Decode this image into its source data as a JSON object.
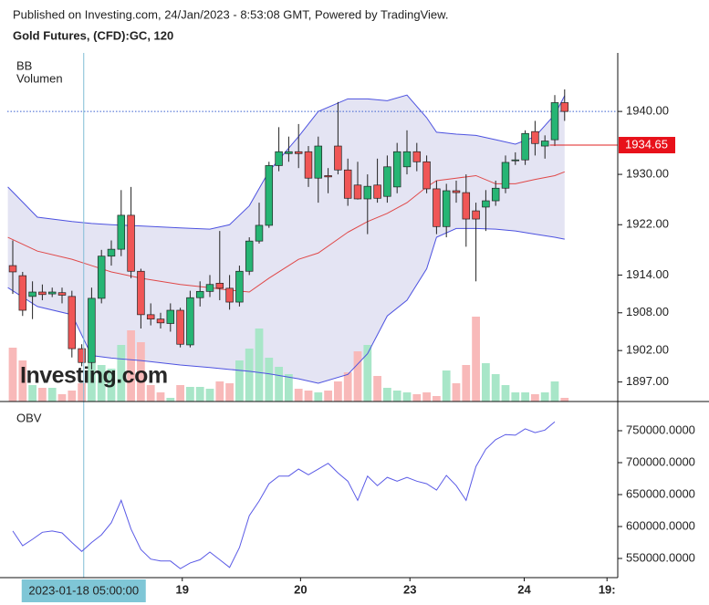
{
  "header": {
    "published": "Published on Investing.com, 24/Jan/2023 - 8:53:08 GMT, Powered by TradingView."
  },
  "chart_data": [
    {
      "type": "candlestick",
      "title": "Gold Futures, (CFD):GC, 120",
      "indicators": [
        "BB",
        "Volumen"
      ],
      "watermark": "Investing.com",
      "up_color": "#26b574",
      "down_color": "#f05656",
      "volume_up_color": "#a8e6c8",
      "volume_down_color": "#f8b9b9",
      "band_color": "#4d52e0",
      "band_fill": "#e4e4f3",
      "middle_color": "#e04848",
      "xlim": [
        -0.556,
        61.39
      ],
      "ylim": [
        1893.9,
        1949.3
      ],
      "volume_ylim": [
        0,
        382
      ],
      "yticks": [
        {
          "value": 1940,
          "label": "1940.00"
        },
        {
          "value": 1930,
          "label": "1930.00"
        },
        {
          "value": 1922,
          "label": "1922.00"
        },
        {
          "value": 1914,
          "label": "1914.00"
        },
        {
          "value": 1908,
          "label": "1908.00"
        },
        {
          "value": 1902,
          "label": "1902.00"
        },
        {
          "value": 1897,
          "label": "1897.00"
        }
      ],
      "xticks": [
        {
          "value": 17.2,
          "label": "19"
        },
        {
          "value": 29.2,
          "label": "20"
        },
        {
          "value": 40.3,
          "label": "23"
        },
        {
          "value": 51.9,
          "label": "24"
        },
        {
          "value": 60.3,
          "label": "19:"
        }
      ],
      "crosshair": {
        "x": 7.2,
        "label": "2023-01-18 05:00:00",
        "y": 1940
      },
      "last_price": 1934.65,
      "open": [
        1915.5,
        1913.9,
        1910.6,
        1911.3,
        1911,
        1911.2,
        1910.6,
        1902.3,
        1900.1,
        1910.3,
        1917,
        1918.1,
        1923.5,
        1914.6,
        1907.7,
        1907,
        1906.3,
        1908.4,
        1902.9,
        1910.4,
        1911.4,
        1912.7,
        1911.9,
        1909.7,
        1914.6,
        1919.4,
        1921.9,
        1931.4,
        1933.3,
        1933.6,
        1933.6,
        1929.4,
        1929.8,
        1934.5,
        1930.7,
        1928.3,
        1926.1,
        1928.3,
        1926.5,
        1928,
        1931.2,
        1933.6,
        1932,
        1927.7,
        1921.7,
        1927.4,
        1927.1,
        1924.2,
        1924.8,
        1925.8,
        1927.8,
        1932.2,
        1932.3,
        1936.8,
        1934.5,
        1935.5,
        1941.4
      ],
      "high": [
        1919.5,
        1914.5,
        1913,
        1912.5,
        1912,
        1912,
        1911.5,
        1903,
        1912,
        1918,
        1919.5,
        1927.5,
        1928,
        1915,
        1909.5,
        1908,
        1909.5,
        1908.8,
        1911.5,
        1913,
        1914,
        1921,
        1914,
        1915.5,
        1920,
        1925.5,
        1932,
        1937.5,
        1936,
        1938,
        1934.5,
        1936,
        1931,
        1941.5,
        1932.5,
        1932,
        1930,
        1932.5,
        1933,
        1935,
        1937,
        1935,
        1933,
        1929,
        1928.5,
        1929,
        1930,
        1925.5,
        1927.5,
        1929,
        1933,
        1933.5,
        1937,
        1938.5,
        1936.2,
        1942.6,
        1943.5
      ],
      "low": [
        1911,
        1907.5,
        1907,
        1910,
        1910.5,
        1909.5,
        1900.9,
        1899.5,
        1899,
        1909.5,
        1915.5,
        1917,
        1913.5,
        1905.5,
        1906,
        1905.5,
        1905,
        1902.5,
        1902.5,
        1909,
        1910.5,
        1910,
        1908.5,
        1909,
        1914,
        1919,
        1921.5,
        1930.5,
        1932,
        1931,
        1928,
        1925.5,
        1927,
        1930,
        1925,
        1926,
        1920.5,
        1925.5,
        1925.5,
        1927,
        1930,
        1930.5,
        1927,
        1920.5,
        1920,
        1925.5,
        1918.5,
        1913,
        1921,
        1925,
        1927,
        1931.5,
        1931.5,
        1933,
        1932.5,
        1934.5,
        1938.5
      ],
      "close": [
        1914.5,
        1908.4,
        1911.3,
        1910.9,
        1911.3,
        1910.8,
        1902.3,
        1900.1,
        1910.3,
        1917,
        1918.1,
        1923.5,
        1914.6,
        1907.7,
        1907,
        1906.4,
        1908.4,
        1903,
        1910.4,
        1911.4,
        1912.5,
        1911.9,
        1909.7,
        1914.6,
        1919.4,
        1921.9,
        1931.4,
        1933.6,
        1933.6,
        1933.3,
        1929.4,
        1934.5,
        1929.6,
        1930.7,
        1926.2,
        1926.1,
        1928.1,
        1926.2,
        1931.2,
        1933.6,
        1933.6,
        1932,
        1927.7,
        1921.7,
        1927.4,
        1927.1,
        1922.9,
        1922.9,
        1925.8,
        1927.8,
        1931.9,
        1932.3,
        1936.5,
        1934.9,
        1935.3,
        1941.4,
        1940
      ],
      "volume": [
        59,
        45,
        18,
        15,
        15,
        8,
        12,
        20,
        45,
        40,
        36,
        62,
        78,
        65,
        18,
        10,
        4,
        18,
        16,
        16,
        14,
        22,
        20,
        45,
        58,
        80,
        48,
        38,
        30,
        14,
        12,
        10,
        12,
        22,
        32,
        55,
        62,
        28,
        15,
        12,
        10,
        8,
        10,
        6,
        34,
        20,
        40,
        93,
        42,
        30,
        18,
        10,
        10,
        8,
        10,
        22,
        4
      ],
      "bb": {
        "x": [
          -0.5,
          2.5,
          6,
          8,
          10,
          13,
          17,
          20,
          22,
          24,
          26,
          29,
          31,
          34,
          36,
          38,
          40,
          42,
          43,
          45,
          47,
          49,
          51,
          53,
          55,
          56
        ],
        "upper": [
          1928,
          1923.2,
          1922.5,
          1922.2,
          1922,
          1921.8,
          1921.5,
          1921.3,
          1922,
          1925,
          1930.5,
          1936,
          1940,
          1942,
          1942,
          1941.7,
          1942.6,
          1939,
          1936.7,
          1936.4,
          1936.2,
          1935.5,
          1934.8,
          1936,
          1939.5,
          1942.5
        ],
        "middle": [
          1920,
          1917.8,
          1916.5,
          1915.5,
          1914.5,
          1913.5,
          1912.5,
          1912,
          1911.6,
          1911.3,
          1913.5,
          1916.5,
          1917.5,
          1920.8,
          1922.5,
          1923.8,
          1925.5,
          1928,
          1929,
          1929.4,
          1929.8,
          1928.5,
          1928.5,
          1929.2,
          1929.8,
          1930.4
        ],
        "lower": [
          1912,
          1909,
          1907.7,
          1901.2,
          1900.8,
          1900.4,
          1899.7,
          1899.3,
          1899,
          1898.7,
          1898.3,
          1897.5,
          1896.8,
          1898.2,
          1901.5,
          1907.5,
          1910,
          1915,
          1920,
          1921.4,
          1921.4,
          1921.3,
          1921,
          1920.5,
          1920,
          1919.7
        ]
      }
    },
    {
      "type": "line",
      "title": "OBV",
      "color": "#5a5ae6",
      "ylim": [
        520000,
        794300
      ],
      "yticks": [
        {
          "value": 750000,
          "label": "750000.0000"
        },
        {
          "value": 700000,
          "label": "700000.0000"
        },
        {
          "value": 650000,
          "label": "650000.0000"
        },
        {
          "value": 600000,
          "label": "600000.0000"
        },
        {
          "value": 550000,
          "label": "550000.0000"
        }
      ],
      "values": [
        593000,
        570000,
        580000,
        591000,
        593000,
        590000,
        575000,
        561000,
        575000,
        587000,
        606000,
        641000,
        596000,
        564000,
        549000,
        546000,
        546000,
        534000,
        543000,
        548000,
        560000,
        548000,
        536000,
        567000,
        617000,
        640000,
        667000,
        679000,
        679000,
        690000,
        681000,
        690000,
        699000,
        684000,
        671000,
        641000,
        679000,
        664000,
        677000,
        671000,
        677000,
        671000,
        667000,
        657000,
        680000,
        664000,
        641000,
        694000,
        721000,
        736000,
        744000,
        743000,
        753000,
        747000,
        751000,
        764000,
        null
      ]
    }
  ]
}
